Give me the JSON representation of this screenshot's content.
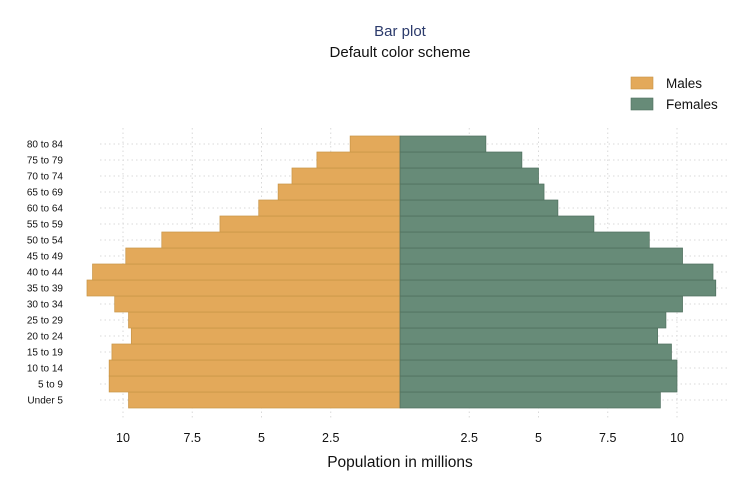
{
  "chart_data": {
    "type": "bar",
    "orientation": "horizontal",
    "layout": "population-pyramid",
    "title": "Bar plot",
    "subtitle": "Default color scheme",
    "xlabel": "Population in millions",
    "categories": [
      "Under 5",
      "5 to 9",
      "10 to 14",
      "15 to 19",
      "20 to 24",
      "25 to 29",
      "30 to 34",
      "35 to 39",
      "40 to 44",
      "45 to 49",
      "50 to 54",
      "55 to 59",
      "60 to 64",
      "65 to 69",
      "70 to 74",
      "75 to 79",
      "80 to 84"
    ],
    "series": [
      {
        "name": "Males",
        "color": "#e3a95a",
        "side": "left",
        "values": [
          9.8,
          10.5,
          10.5,
          10.4,
          9.7,
          9.8,
          10.3,
          11.3,
          11.1,
          9.9,
          8.6,
          6.5,
          5.1,
          4.4,
          3.9,
          3.0,
          1.8
        ]
      },
      {
        "name": "Females",
        "color": "#678b78",
        "side": "right",
        "values": [
          9.4,
          10.0,
          10.0,
          9.8,
          9.3,
          9.6,
          10.2,
          11.4,
          11.3,
          10.2,
          9.0,
          7.0,
          5.7,
          5.2,
          5.0,
          4.4,
          3.1
        ]
      }
    ],
    "xticks": {
      "left": [
        10,
        7.5,
        5,
        2.5
      ],
      "right": [
        2.5,
        5,
        7.5,
        10
      ],
      "left_labels": [
        "10",
        "7.5",
        "5",
        "2.5"
      ],
      "right_labels": [
        "2.5",
        "5",
        "7.5",
        "10"
      ]
    },
    "xlim": [
      0,
      12.5
    ],
    "grid": true,
    "legend_position": "top-right"
  }
}
